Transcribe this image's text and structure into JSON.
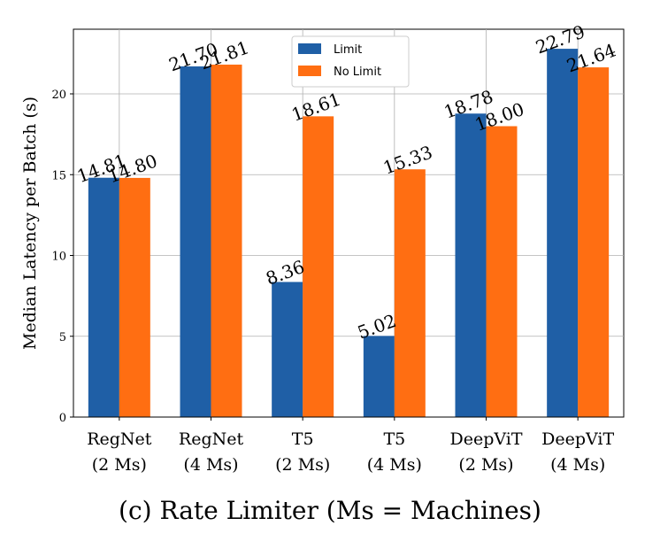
{
  "chart_data": {
    "type": "bar",
    "categories": [
      [
        "RegNet",
        "(2 Ms)"
      ],
      [
        "RegNet",
        "(4 Ms)"
      ],
      [
        "T5",
        "(2 Ms)"
      ],
      [
        "T5",
        "(4 Ms)"
      ],
      [
        "DeepViT",
        "(2 Ms)"
      ],
      [
        "DeepViT",
        "(4 Ms)"
      ]
    ],
    "series": [
      {
        "name": "Limit",
        "color": "#1f5fa6",
        "values": [
          14.81,
          21.7,
          8.36,
          5.02,
          18.78,
          22.79
        ],
        "labels": [
          "14.81",
          "21.70",
          "8.36",
          "5.02",
          "18.78",
          "22.79"
        ]
      },
      {
        "name": "No Limit",
        "color": "#ff6e12",
        "values": [
          14.8,
          21.81,
          18.61,
          15.33,
          18.0,
          21.64
        ],
        "labels": [
          "14.80",
          "21.81",
          "18.61",
          "15.33",
          "18.00",
          "21.64"
        ]
      }
    ],
    "ylabel": "Median Latency per Batch (s)",
    "xlabel": "",
    "ylim": [
      0,
      24
    ],
    "yticks": [
      0,
      5,
      10,
      15,
      20
    ],
    "grid": true,
    "legend_position": "top-center"
  },
  "caption": "(c) Rate Limiter (Ms = Machines)"
}
